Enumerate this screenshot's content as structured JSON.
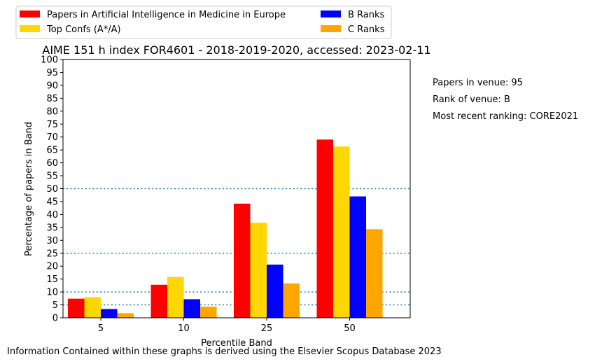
{
  "chart_data": {
    "type": "bar",
    "title": "AIME 151 h index FOR4601 - 2018-2019-2020, accessed: 2023-02-11",
    "xlabel": "Percentile Band",
    "ylabel": "Percentage of papers in Band",
    "categories": [
      "5",
      "10",
      "25",
      "50"
    ],
    "ylim": [
      0,
      100
    ],
    "yticks": [
      "0",
      "5",
      "10",
      "15",
      "20",
      "25",
      "30",
      "35",
      "40",
      "45",
      "50",
      "55",
      "60",
      "65",
      "70",
      "75",
      "80",
      "85",
      "90",
      "95",
      "100"
    ],
    "reference_lines": [
      5,
      10,
      25,
      50
    ],
    "grid": false,
    "legend_position": "top-left, outside plot",
    "series": [
      {
        "name": "Papers in Artificial Intelligence in Medicine in Europe",
        "color": "#ff0000",
        "values": [
          7.4,
          12.8,
          44.2,
          69.0
        ]
      },
      {
        "name": "Top Confs (A*/A)",
        "color": "#ffd700",
        "values": [
          8.0,
          15.8,
          36.8,
          66.3
        ]
      },
      {
        "name": "B Ranks",
        "color": "#0000ff",
        "values": [
          3.4,
          7.2,
          20.6,
          47.0
        ]
      },
      {
        "name": "C Ranks",
        "color": "#ffa500",
        "values": [
          1.8,
          4.3,
          13.3,
          34.3
        ]
      }
    ]
  },
  "notes": {
    "papers_in_venue": "Papers in venue: 95",
    "rank_of_venue": "Rank of venue: B",
    "most_recent_ranking": "Most recent ranking: CORE2021"
  },
  "footer": "Information Contained within these graphs is derived using the Elsevier Scopus Database 2023"
}
